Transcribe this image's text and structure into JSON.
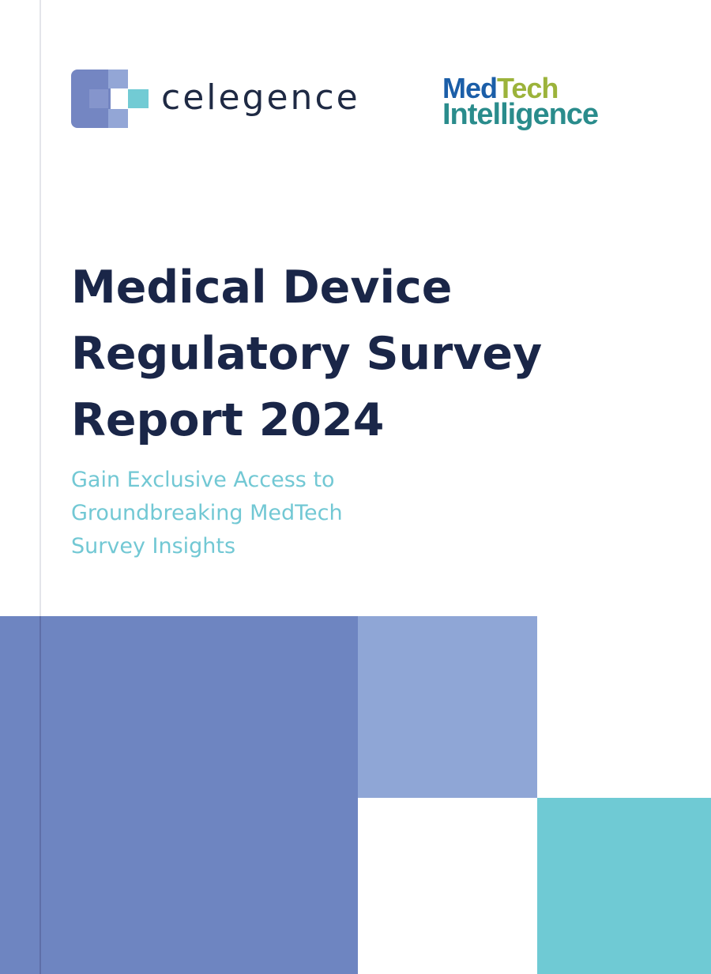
{
  "logos": {
    "celegence": {
      "wordmark": "celegence",
      "colors": {
        "mark_dark": "#7486c2",
        "mark_light": "#93a6d6",
        "mark_teal": "#72cbd4",
        "text": "#1f2a44"
      }
    },
    "medtech": {
      "word_med": "Med",
      "word_tech": "Tech",
      "word_intelligence": "Intelligence",
      "colors": {
        "med": "#1b5ea8",
        "tech": "#9cb33b",
        "intelligence": "#2a8c8c"
      }
    }
  },
  "cover": {
    "title_lines": [
      "Medical Device",
      "Regulatory Survey",
      "Report 2024"
    ],
    "subtitle_lines": [
      "Gain Exclusive Access to",
      "Groundbreaking MedTech",
      "Survey Insights"
    ]
  },
  "colors": {
    "title": "#1a2648",
    "subtitle": "#72c8d4",
    "block_main": "#6e85c1",
    "block_light": "#8fa6d6",
    "block_teal": "#6fcad4"
  }
}
